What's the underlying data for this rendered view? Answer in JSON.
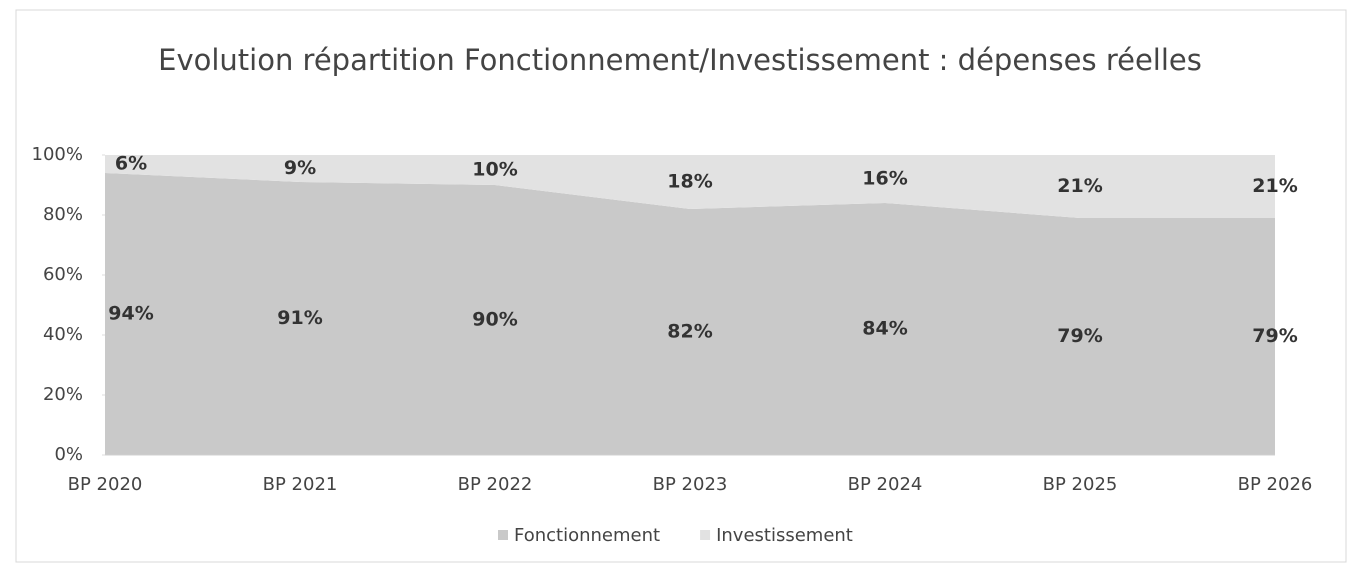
{
  "chart_data": {
    "type": "stacked_area",
    "title": "Evolution répartition Fonctionnement/Investissement : dépenses réelles",
    "categories": [
      "BP 2020",
      "BP 2021",
      "BP 2022",
      "BP 2023",
      "BP 2024",
      "BP 2025",
      "BP 2026"
    ],
    "series": [
      {
        "name": "Fonctionnement",
        "color": "#c9c9c9",
        "values": [
          94,
          91,
          90,
          82,
          84,
          79,
          79
        ],
        "value_labels": [
          "94%",
          "91%",
          "90%",
          "82%",
          "84%",
          "79%",
          "79%"
        ]
      },
      {
        "name": "Investissement",
        "color": "#e2e2e2",
        "values": [
          6,
          9,
          10,
          18,
          16,
          21,
          21
        ],
        "value_labels": [
          "6%",
          "9%",
          "10%",
          "18%",
          "16%",
          "21%",
          "21%"
        ]
      }
    ],
    "ylim": [
      0,
      100
    ],
    "yticks": [
      {
        "value": 0,
        "label": "0%"
      },
      {
        "value": 20,
        "label": "20%"
      },
      {
        "value": 40,
        "label": "40%"
      },
      {
        "value": 60,
        "label": "60%"
      },
      {
        "value": 80,
        "label": "80%"
      },
      {
        "value": 100,
        "label": "100%"
      }
    ],
    "legend": "bottom"
  }
}
